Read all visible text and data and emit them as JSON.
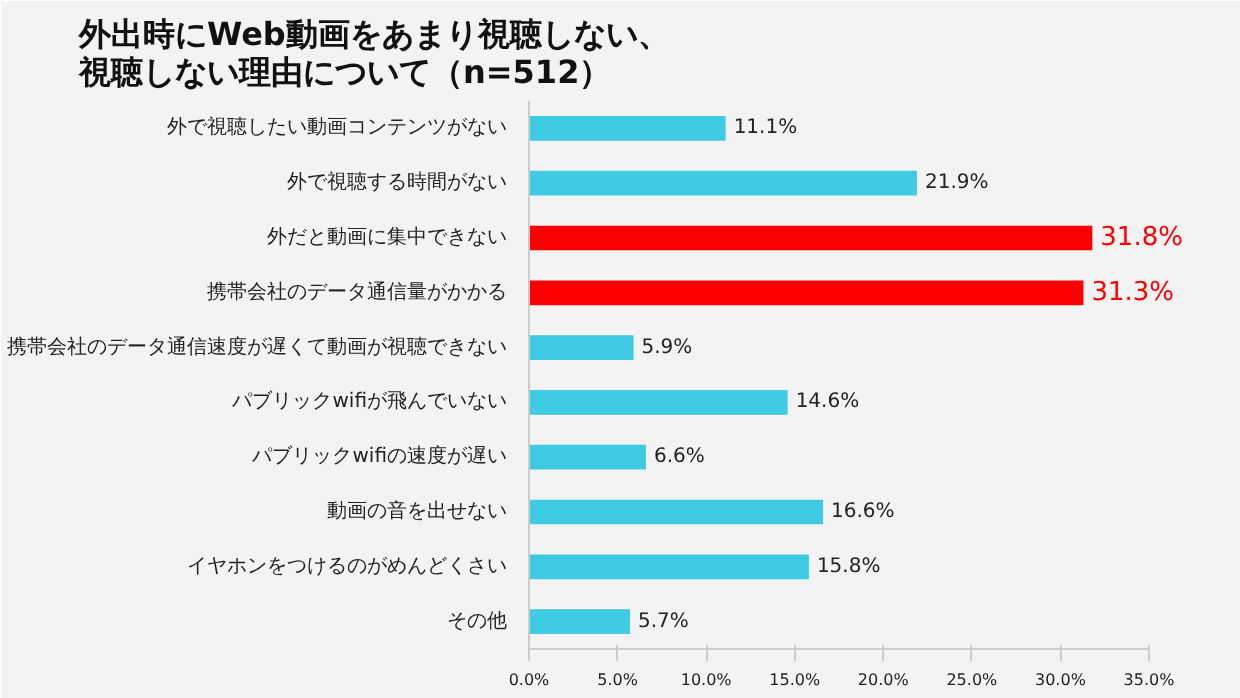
{
  "chart_data": {
    "type": "bar",
    "orientation": "horizontal",
    "title": "外出時にWeb動画をあまり視聴しない、視聴しない理由について（n=512）",
    "categories": [
      "外で視聴したい動画コンテンツがない",
      "外で視聴する時間がない",
      "外だと動画に集中できない",
      "携帯会社のデータ通信量がかかる",
      "携帯会社のデータ通信速度が遅くて動画が視聴できない",
      "パブリックwifiが飛んでいない",
      "パブリックwifiの速度が遅い",
      "動画の音を出せない",
      "イヤホンをつけるのがめんどくさい",
      "その他"
    ],
    "values": [
      11.1,
      21.9,
      31.8,
      31.3,
      5.9,
      14.6,
      6.6,
      16.6,
      15.8,
      5.7
    ],
    "value_labels": [
      "11.1%",
      "21.9%",
      "31.8%",
      "31.3%",
      "5.9%",
      "14.6%",
      "6.6%",
      "16.6%",
      "15.8%",
      "5.7%"
    ],
    "colors": [
      "#3ecbe3",
      "#3ecbe3",
      "#ff0000",
      "#ff0000",
      "#3ecbe3",
      "#3ecbe3",
      "#3ecbe3",
      "#3ecbe3",
      "#3ecbe3",
      "#3ecbe3"
    ],
    "xlim": [
      0,
      35
    ],
    "xticks": [
      {
        "value": 0,
        "label": "0.0%"
      },
      {
        "value": 5,
        "label": "5.0%"
      },
      {
        "value": 10,
        "label": "10.0%"
      },
      {
        "value": 15,
        "label": "15.0%"
      },
      {
        "value": 20,
        "label": "20.0%"
      },
      {
        "value": 25,
        "label": "25.0%"
      },
      {
        "value": 30,
        "label": "30.0%"
      },
      {
        "value": 35,
        "label": "35.0%"
      }
    ],
    "grid": false
  }
}
